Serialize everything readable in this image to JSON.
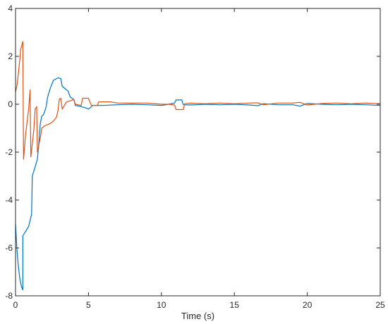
{
  "chart_data": {
    "type": "line",
    "title": "",
    "xlabel": "Time (s)",
    "ylabel": "",
    "xlim": [
      0,
      25
    ],
    "ylim": [
      -8,
      4
    ],
    "x_ticks": [
      0,
      5,
      10,
      15,
      20,
      25
    ],
    "x_tick_labels": [
      "0",
      "5",
      "10",
      "15",
      "20",
      "25"
    ],
    "y_ticks": [
      -8,
      -6,
      -4,
      -2,
      0,
      2,
      4
    ],
    "y_tick_labels": [
      "-8",
      "-6",
      "-4",
      "-2",
      "0",
      "2",
      "4"
    ],
    "grid": false,
    "legend": "none",
    "series": [
      {
        "color": "#0072BD",
        "points": [
          [
            0.0,
            -5.0
          ],
          [
            0.1,
            -6.1
          ],
          [
            0.2,
            -6.8
          ],
          [
            0.3,
            -7.3
          ],
          [
            0.4,
            -7.6
          ],
          [
            0.5,
            -7.75
          ],
          [
            0.5,
            -5.5
          ],
          [
            0.7,
            -5.3
          ],
          [
            0.9,
            -5.1
          ],
          [
            1.1,
            -4.6
          ],
          [
            1.15,
            -3.0
          ],
          [
            1.3,
            -2.7
          ],
          [
            1.5,
            -2.3
          ],
          [
            1.6,
            -1.6
          ],
          [
            1.7,
            -0.8
          ],
          [
            1.8,
            -0.5
          ],
          [
            1.9,
            -0.45
          ],
          [
            2.0,
            -0.3
          ],
          [
            2.1,
            -0.1
          ],
          [
            2.2,
            0.3
          ],
          [
            2.4,
            0.7
          ],
          [
            2.6,
            1.0
          ],
          [
            2.9,
            1.1
          ],
          [
            3.1,
            1.08
          ],
          [
            3.2,
            0.75
          ],
          [
            3.4,
            0.65
          ],
          [
            3.6,
            0.55
          ],
          [
            3.75,
            0.3
          ],
          [
            4.0,
            0.2
          ],
          [
            4.1,
            -0.05
          ],
          [
            4.5,
            -0.1
          ],
          [
            4.8,
            -0.15
          ],
          [
            5.0,
            -0.2
          ],
          [
            5.3,
            -0.05
          ],
          [
            6.0,
            -0.05
          ],
          [
            7.0,
            -0.02
          ],
          [
            8.0,
            0.0
          ],
          [
            9.0,
            -0.02
          ],
          [
            10.0,
            -0.05
          ],
          [
            10.5,
            0.0
          ],
          [
            10.9,
            0.05
          ],
          [
            11.0,
            0.18
          ],
          [
            11.4,
            0.18
          ],
          [
            11.5,
            -0.02
          ],
          [
            12.0,
            -0.03
          ],
          [
            13.0,
            0.0
          ],
          [
            14.0,
            -0.02
          ],
          [
            15.0,
            0.0
          ],
          [
            16.0,
            -0.03
          ],
          [
            16.6,
            -0.06
          ],
          [
            17.0,
            0.02
          ],
          [
            18.0,
            -0.02
          ],
          [
            19.0,
            -0.02
          ],
          [
            19.5,
            -0.08
          ],
          [
            20.0,
            0.03
          ],
          [
            21.0,
            0.0
          ],
          [
            22.0,
            -0.02
          ],
          [
            23.0,
            0.0
          ],
          [
            24.0,
            -0.02
          ],
          [
            25.0,
            -0.05
          ]
        ]
      },
      {
        "color": "#D95319",
        "points": [
          [
            0.0,
            0.5
          ],
          [
            0.1,
            0.8
          ],
          [
            0.2,
            1.3
          ],
          [
            0.3,
            1.9
          ],
          [
            0.35,
            2.3
          ],
          [
            0.45,
            2.5
          ],
          [
            0.5,
            2.62
          ],
          [
            0.55,
            -2.3
          ],
          [
            0.7,
            -1.2
          ],
          [
            0.9,
            -0.2
          ],
          [
            1.0,
            0.6
          ],
          [
            1.05,
            -2.2
          ],
          [
            1.25,
            -1.1
          ],
          [
            1.35,
            -0.2
          ],
          [
            1.45,
            -0.1
          ],
          [
            1.5,
            -2.0
          ],
          [
            1.7,
            -1.4
          ],
          [
            1.8,
            -1.0
          ],
          [
            2.0,
            -0.9
          ],
          [
            2.2,
            -0.85
          ],
          [
            2.4,
            -0.8
          ],
          [
            2.6,
            -0.7
          ],
          [
            2.8,
            -0.55
          ],
          [
            2.9,
            -0.3
          ],
          [
            3.0,
            0.2
          ],
          [
            3.1,
            0.25
          ],
          [
            3.2,
            -0.2
          ],
          [
            3.5,
            0.1
          ],
          [
            3.8,
            0.15
          ],
          [
            4.0,
            0.2
          ],
          [
            4.1,
            0.0
          ],
          [
            4.5,
            -0.05
          ],
          [
            4.6,
            0.25
          ],
          [
            5.0,
            0.25
          ],
          [
            5.2,
            -0.05
          ],
          [
            5.6,
            -0.05
          ],
          [
            5.7,
            0.1
          ],
          [
            6.5,
            0.1
          ],
          [
            7.0,
            0.05
          ],
          [
            8.0,
            0.05
          ],
          [
            9.0,
            0.05
          ],
          [
            10.0,
            0.0
          ],
          [
            10.5,
            0.0
          ],
          [
            10.9,
            -0.03
          ],
          [
            11.0,
            -0.22
          ],
          [
            11.5,
            -0.22
          ],
          [
            11.6,
            0.02
          ],
          [
            12.0,
            0.05
          ],
          [
            13.0,
            0.02
          ],
          [
            14.0,
            0.05
          ],
          [
            15.0,
            0.02
          ],
          [
            16.0,
            0.05
          ],
          [
            16.6,
            0.06
          ],
          [
            17.0,
            -0.02
          ],
          [
            18.0,
            0.05
          ],
          [
            19.0,
            0.05
          ],
          [
            19.5,
            0.08
          ],
          [
            20.0,
            -0.03
          ],
          [
            21.0,
            0.03
          ],
          [
            22.0,
            0.05
          ],
          [
            23.0,
            0.02
          ],
          [
            24.0,
            0.05
          ],
          [
            25.0,
            0.02
          ]
        ]
      }
    ]
  }
}
